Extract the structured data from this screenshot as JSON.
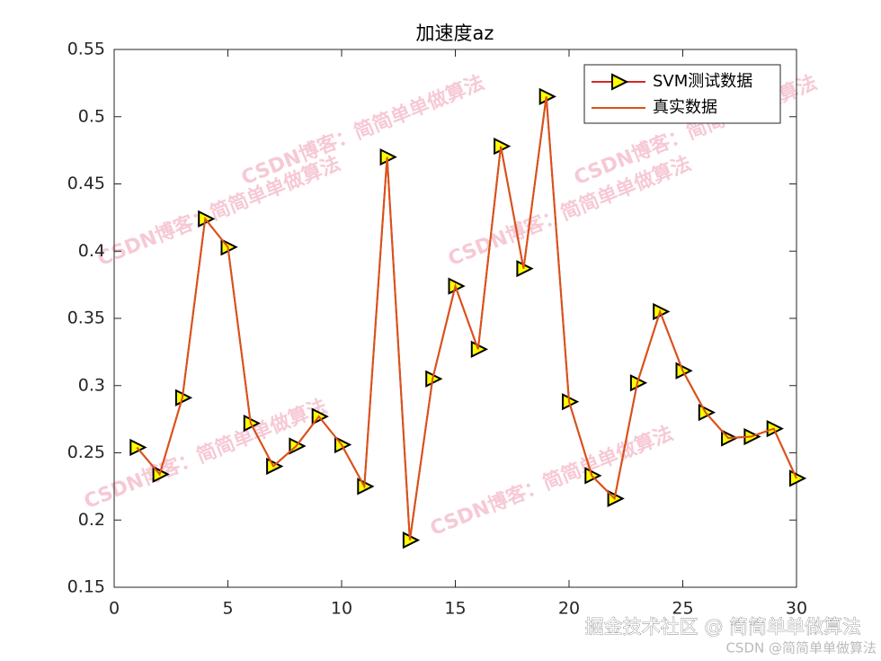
{
  "chart_data": {
    "type": "line",
    "title": "加速度az",
    "x": [
      1,
      2,
      3,
      4,
      5,
      6,
      7,
      8,
      9,
      10,
      11,
      12,
      13,
      14,
      15,
      16,
      17,
      18,
      19,
      20,
      21,
      22,
      23,
      24,
      25,
      26,
      27,
      28,
      29,
      30
    ],
    "series": [
      {
        "name": "SVM测试数据",
        "color": "#d62728",
        "marker": "triangle-right",
        "marker_color": "#ffff00",
        "values": [
          0.254,
          0.234,
          0.291,
          0.424,
          0.403,
          0.272,
          0.24,
          0.255,
          0.277,
          0.256,
          0.225,
          0.47,
          0.185,
          0.305,
          0.374,
          0.327,
          0.478,
          0.387,
          0.515,
          0.288,
          0.233,
          0.216,
          0.302,
          0.355,
          0.311,
          0.28,
          0.261,
          0.262,
          0.268,
          0.231
        ]
      },
      {
        "name": "真实数据",
        "color": "#d95319",
        "values": [
          0.254,
          0.234,
          0.291,
          0.424,
          0.403,
          0.272,
          0.24,
          0.255,
          0.277,
          0.256,
          0.225,
          0.47,
          0.185,
          0.305,
          0.374,
          0.327,
          0.478,
          0.387,
          0.515,
          0.288,
          0.233,
          0.216,
          0.302,
          0.355,
          0.311,
          0.28,
          0.261,
          0.262,
          0.268,
          0.231
        ]
      }
    ],
    "xlim": [
      0,
      30
    ],
    "xticks": [
      0,
      5,
      10,
      15,
      20,
      25,
      30
    ],
    "ylim": [
      0.15,
      0.55
    ],
    "yticks": [
      0.15,
      0.2,
      0.25,
      0.3,
      0.35,
      0.4,
      0.45,
      0.5,
      0.55
    ],
    "grid": false,
    "legend": "upper right"
  },
  "watermarks": [
    "CSDN博客：简简单单做算法",
    "CSDN博客：简简单单做算法",
    "CSDN博客：简简单单做算法",
    "CSDN博客：简简单单做算法",
    "CSDN博客：简简单单做算法",
    "CSDN博客：简简单单做算法"
  ],
  "footer": {
    "juejin": "掘金技术社区 @ 简简单单做算法",
    "csdn": "CSDN @简简单单做算法"
  }
}
